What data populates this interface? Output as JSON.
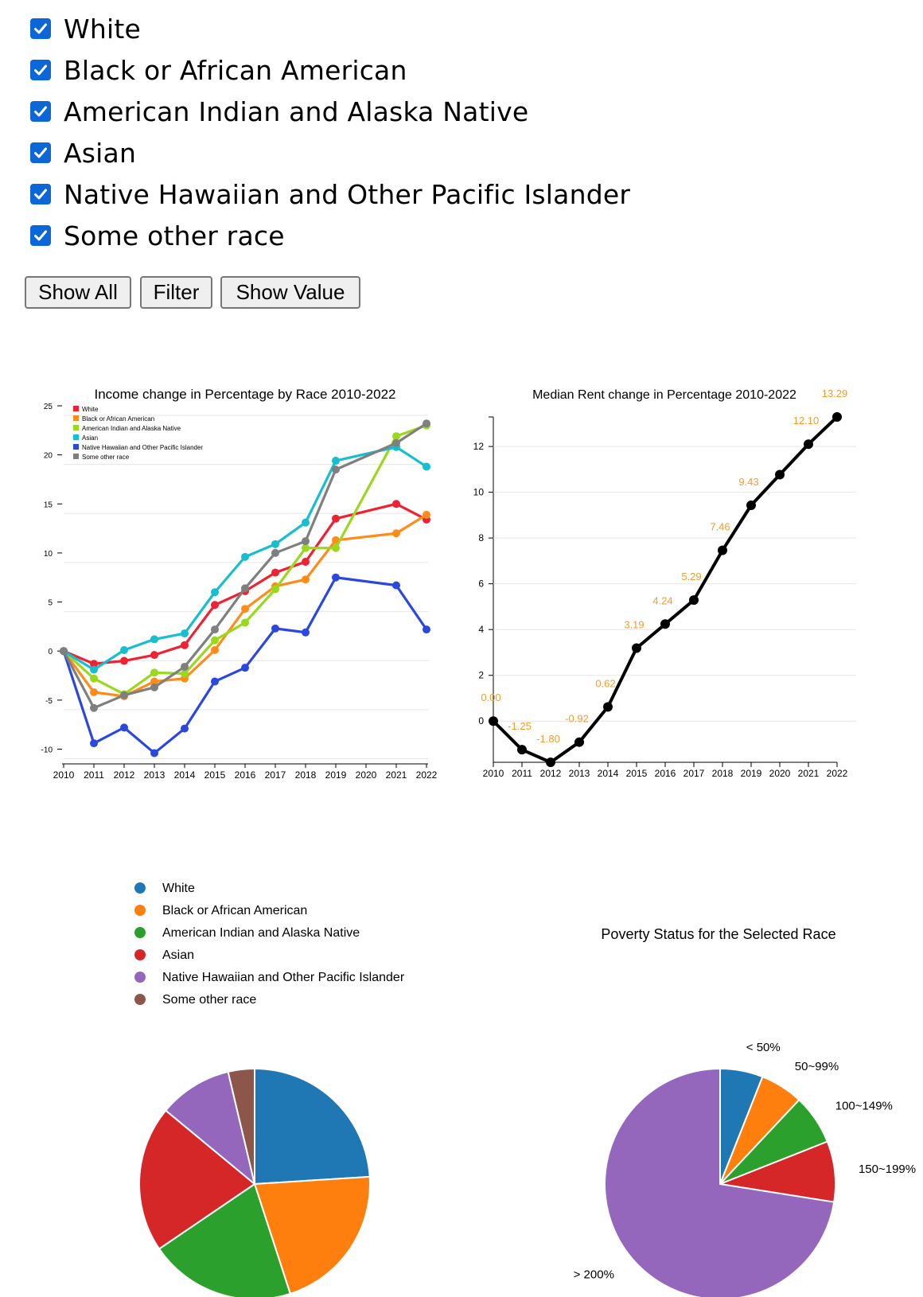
{
  "races": [
    {
      "label": "White",
      "checked": true
    },
    {
      "label": "Black or African American",
      "checked": true
    },
    {
      "label": "American Indian and Alaska Native",
      "checked": true
    },
    {
      "label": "Asian",
      "checked": true
    },
    {
      "label": "Native Hawaiian and Other Pacific Islander",
      "checked": true
    },
    {
      "label": "Some other race",
      "checked": true
    }
  ],
  "buttons": {
    "show_all": "Show All",
    "filter": "Filter",
    "show_value": "Show Value"
  },
  "chart_data": [
    {
      "type": "line",
      "title": "Income change in Percentage by Race 2010-2022",
      "x": [
        "2010",
        "2011",
        "2012",
        "2013",
        "2014",
        "2015",
        "2016",
        "2017",
        "2018",
        "2019",
        "2020",
        "2021",
        "2022"
      ],
      "ylim": [
        -11.5,
        25
      ],
      "yticks": [
        -10,
        -5,
        0,
        5,
        10,
        15,
        20,
        25
      ],
      "grid": true,
      "legend": "top-left",
      "series": [
        {
          "name": "White",
          "color": "#ee2233",
          "x": [
            "2010",
            "2011",
            "2012",
            "2013",
            "2014",
            "2015",
            "2016",
            "2017",
            "2018",
            "2019",
            "2021",
            "2022"
          ],
          "values": [
            0,
            -1.3,
            -1.0,
            -0.4,
            0.6,
            4.7,
            6.1,
            8.0,
            9.1,
            13.5,
            15.0,
            13.4
          ]
        },
        {
          "name": "Black or African American",
          "color": "#ff8c1a",
          "x": [
            "2010",
            "2011",
            "2012",
            "2013",
            "2014",
            "2015",
            "2016",
            "2017",
            "2018",
            "2019",
            "2021",
            "2022"
          ],
          "values": [
            0,
            -4.2,
            -4.6,
            -3.1,
            -2.8,
            0.1,
            4.3,
            6.6,
            7.3,
            11.3,
            12.0,
            13.9
          ]
        },
        {
          "name": "American Indian and Alaska Native",
          "color": "#99d81c",
          "x": [
            "2010",
            "2011",
            "2012",
            "2013",
            "2014",
            "2015",
            "2016",
            "2017",
            "2018",
            "2019",
            "2021",
            "2022"
          ],
          "values": [
            0,
            -2.8,
            -4.4,
            -2.2,
            -2.3,
            1.1,
            2.9,
            6.3,
            10.5,
            10.5,
            21.9,
            23.0
          ]
        },
        {
          "name": "Asian",
          "color": "#17becf",
          "x": [
            "2010",
            "2011",
            "2012",
            "2013",
            "2014",
            "2015",
            "2016",
            "2017",
            "2018",
            "2019",
            "2021",
            "2022"
          ],
          "values": [
            0,
            -1.9,
            0.1,
            1.2,
            1.8,
            6.0,
            9.6,
            10.9,
            13.1,
            19.4,
            20.8,
            18.8
          ]
        },
        {
          "name": "Native Hawaiian and Other Pacific Islander",
          "color": "#2a48e0",
          "x": [
            "2010",
            "2011",
            "2012",
            "2013",
            "2014",
            "2015",
            "2016",
            "2017",
            "2018",
            "2019",
            "2021",
            "2022"
          ],
          "values": [
            0,
            -9.4,
            -7.8,
            -10.4,
            -7.9,
            -3.1,
            -1.7,
            2.3,
            1.9,
            7.5,
            6.7,
            2.2
          ]
        },
        {
          "name": "Some other race",
          "color": "#7f7f7f",
          "x": [
            "2010",
            "2011",
            "2012",
            "2013",
            "2014",
            "2015",
            "2016",
            "2017",
            "2018",
            "2019",
            "2021",
            "2022"
          ],
          "values": [
            0,
            -5.8,
            -4.5,
            -3.7,
            -1.6,
            2.2,
            6.4,
            10.0,
            11.2,
            18.5,
            21.2,
            23.2
          ]
        }
      ]
    },
    {
      "type": "line",
      "title": "Median Rent change in Percentage 2010-2022",
      "x": [
        "2010",
        "2011",
        "2012",
        "2013",
        "2014",
        "2015",
        "2016",
        "2017",
        "2018",
        "2019",
        "2020",
        "2021",
        "2022"
      ],
      "ylim": [
        -1.8,
        13.29
      ],
      "yticks": [
        0,
        2,
        4,
        6,
        8,
        10,
        12
      ],
      "grid": true,
      "series": [
        {
          "color": "#000000",
          "label_color": "#f39c2a",
          "values": [
            0.0,
            -1.25,
            -1.8,
            -0.92,
            0.62,
            3.19,
            4.24,
            5.29,
            7.46,
            9.43,
            null,
            12.1,
            13.29
          ],
          "labels": [
            "0.00",
            "-1.25",
            "-1.80",
            "-0.92",
            "0.62",
            "3.19",
            "4.24",
            "5.29",
            "7.46",
            "9.43",
            "",
            "12.10",
            "13.29"
          ],
          "plot_values": [
            0.0,
            -1.25,
            -1.8,
            -0.92,
            0.62,
            3.19,
            4.24,
            5.29,
            7.46,
            9.43,
            10.77,
            12.1,
            13.29
          ]
        }
      ]
    },
    {
      "type": "pie",
      "legend": "top-left",
      "categories": [
        "White",
        "Black or African American",
        "American Indian and Alaska Native",
        "Asian",
        "Native Hawaiian and Other Pacific Islander",
        "Some other race"
      ],
      "colors": [
        "#1f77b4",
        "#ff7f0e",
        "#2ca02c",
        "#d62728",
        "#9467bd",
        "#8c564b"
      ],
      "values": [
        24.0,
        21.0,
        20.5,
        20.5,
        10.3,
        3.7
      ]
    },
    {
      "type": "pie",
      "title": "Poverty Status for the Selected Race",
      "categories": [
        "< 50%",
        "50~99%",
        "100~149%",
        "150~199%",
        "> 200%"
      ],
      "colors": [
        "#1f77b4",
        "#ff7f0e",
        "#2ca02c",
        "#d62728",
        "#9467bd"
      ],
      "values": [
        6.0,
        6.0,
        7.0,
        8.5,
        72.5
      ]
    }
  ]
}
